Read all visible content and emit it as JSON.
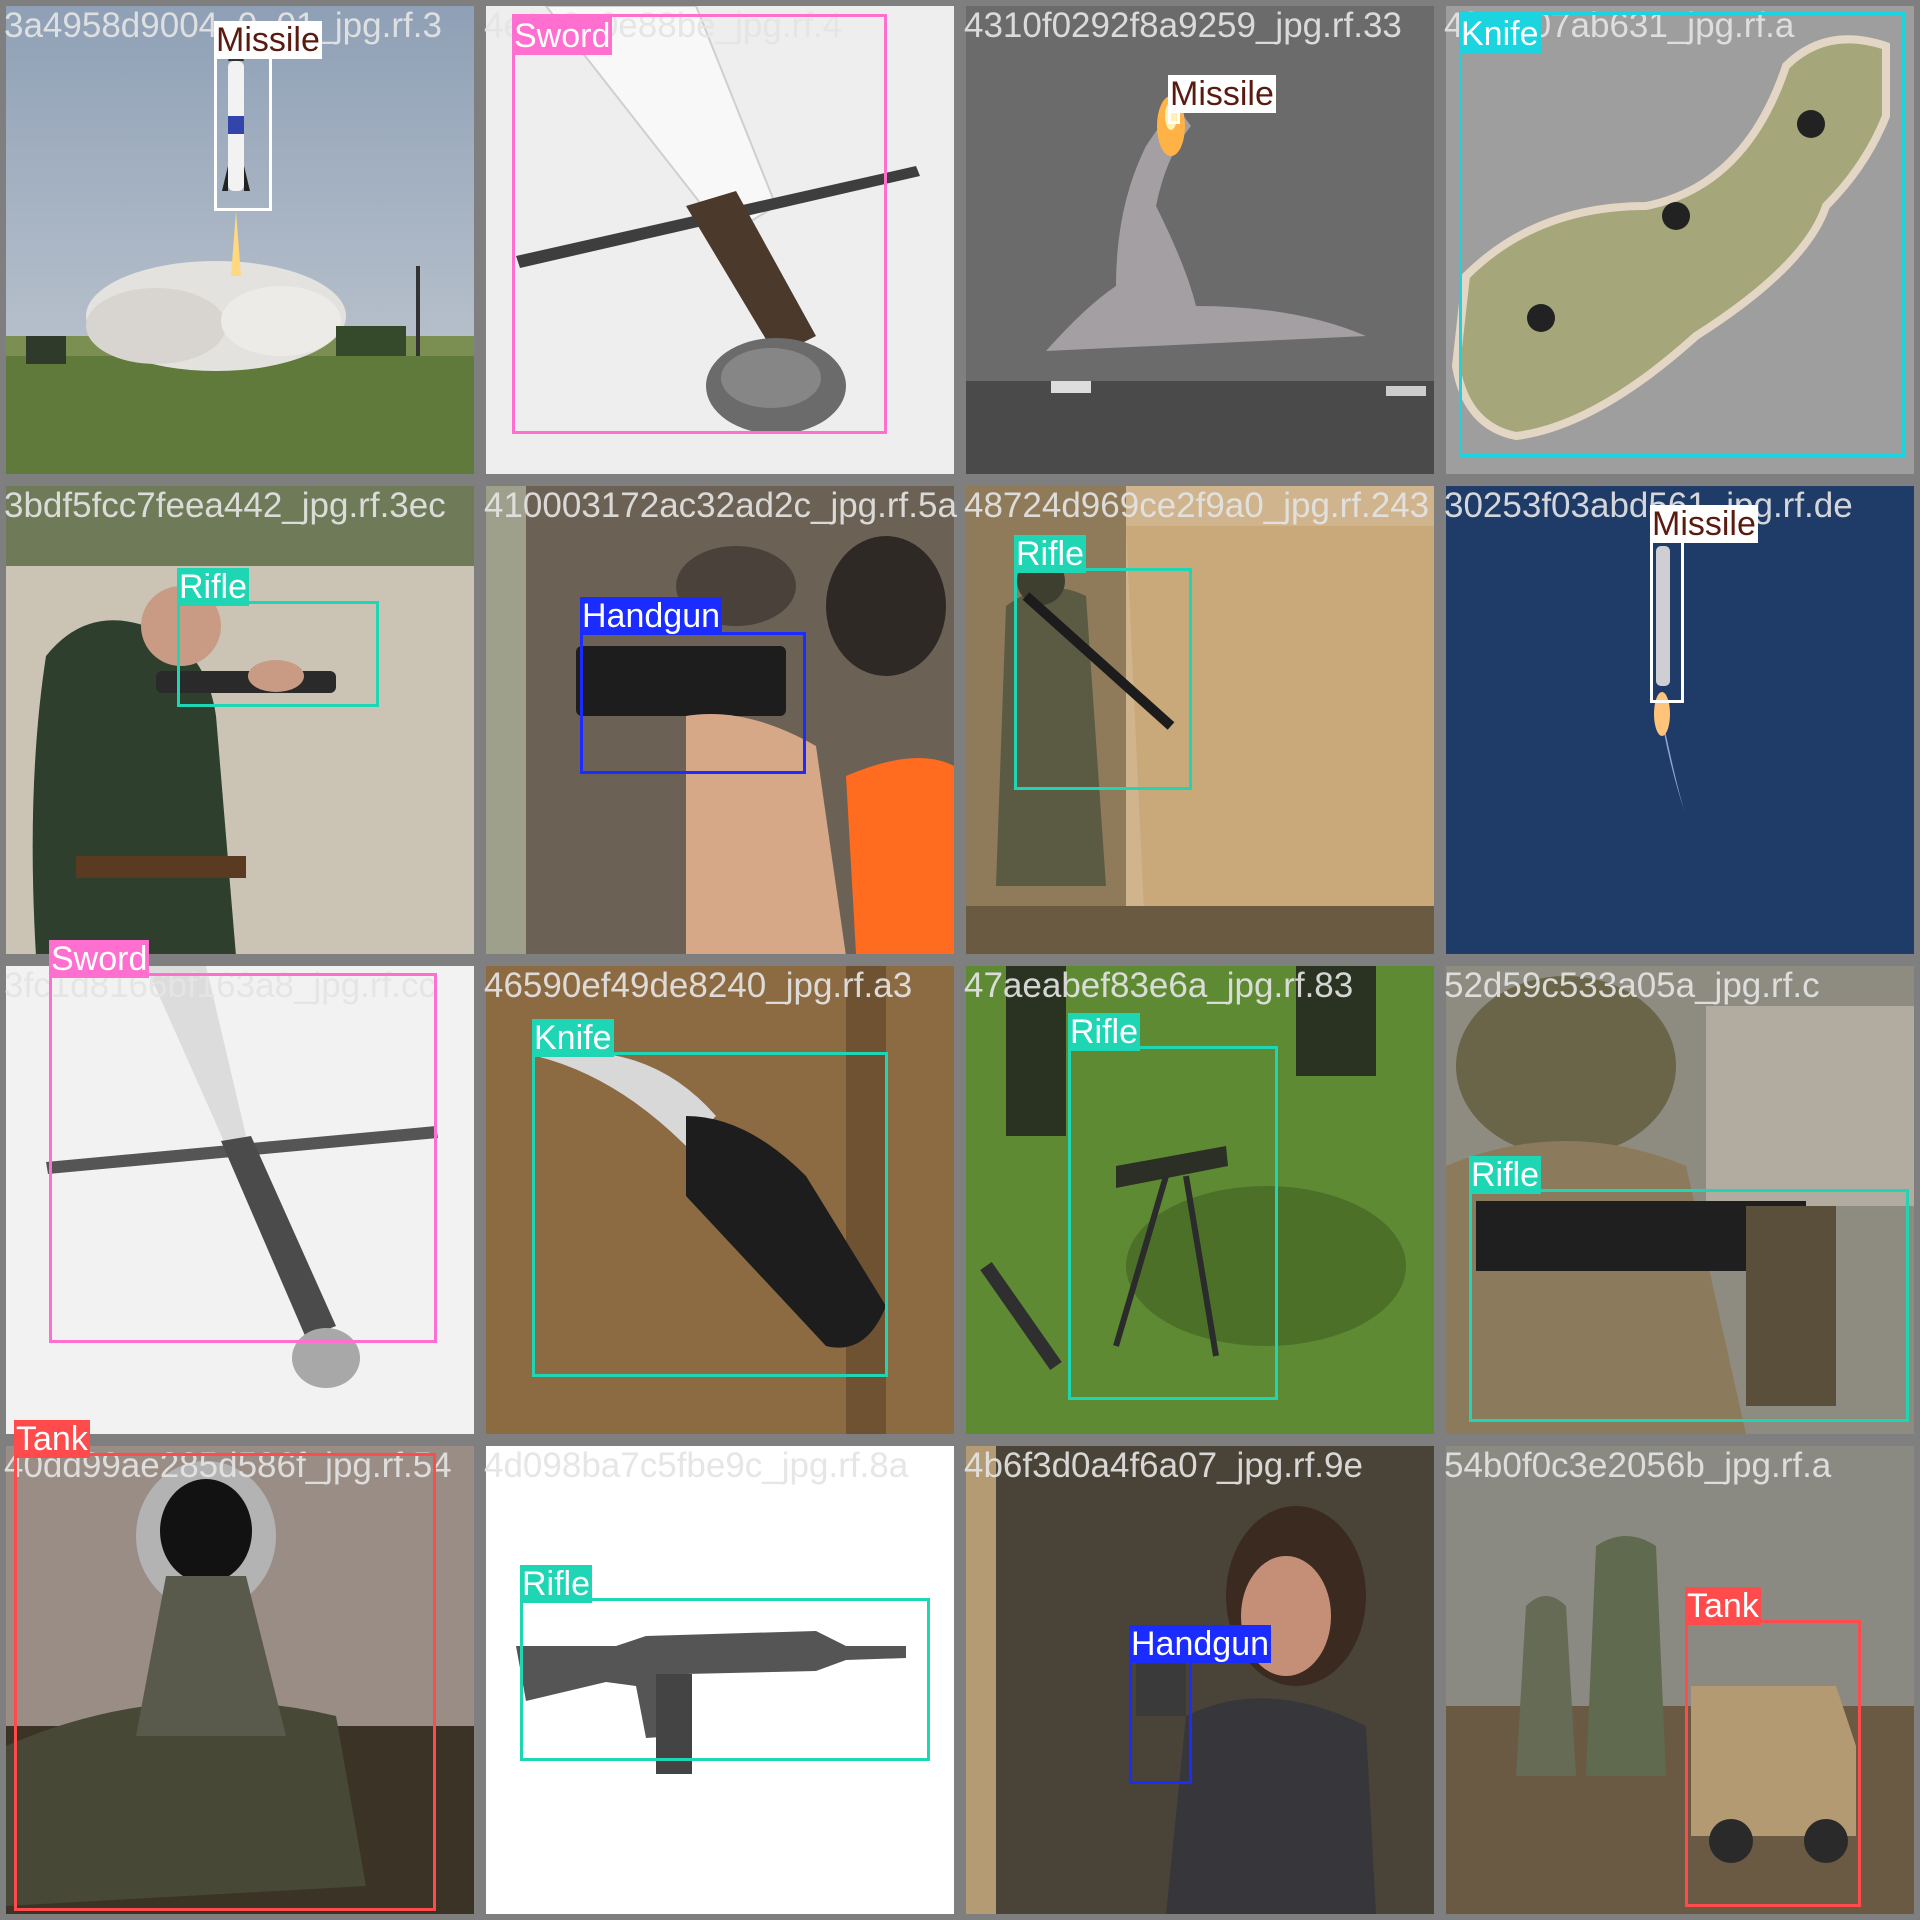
{
  "palette": {
    "Missile": {
      "box": "#ffffff",
      "label_bg": "#ffffff",
      "label_fg": "#5a1a10"
    },
    "Sword": {
      "box": "#ff6fd0",
      "label_bg": "#ff6fd0",
      "label_fg": "#ffffff"
    },
    "Knife": {
      "box": "#1ad4e0",
      "label_bg": "#1ad4e0",
      "label_fg": "#ffffff"
    },
    "Rifle": {
      "box": "#1fd6b4",
      "label_bg": "#1fd6b4",
      "label_fg": "#ffffff"
    },
    "Handgun": {
      "box": "#1a2cff",
      "label_bg": "#1a2cff",
      "label_fg": "#ffffff"
    },
    "Tank": {
      "box": "#ff4b4b",
      "label_bg": "#ff4b4b",
      "label_fg": "#ffffff"
    }
  },
  "tiles": [
    {
      "filename": "3a4958d9004_0_01_jpg.rf.3",
      "labels": [
        "Missile"
      ],
      "scene": "missile-launch-field"
    },
    {
      "filename": "4e1e9c0e88be_jpg.rf.4",
      "labels": [
        "Sword"
      ],
      "scene": "sword-hilt-closeup"
    },
    {
      "filename": "4310f0292f8a9259_jpg.rf.33",
      "labels": [
        "Missile"
      ],
      "scene": "rocket-launch-sea"
    },
    {
      "filename": "4fa2a07ab631_jpg.rf.a",
      "labels": [
        "Knife"
      ],
      "scene": "knife-handle-scale"
    },
    {
      "filename": "3bdf5fcc7feea442_jpg.rf.3ec",
      "labels": [
        "Rifle"
      ],
      "scene": "man-firing-rifle"
    },
    {
      "filename": "410003172ac32ad2c_jpg.rf.5a",
      "labels": [
        "Handgun"
      ],
      "scene": "shooting-range-handgun"
    },
    {
      "filename": "48724d969ce2f9a0_jpg.rf.243",
      "labels": [
        "Rifle"
      ],
      "scene": "soldier-by-tent"
    },
    {
      "filename": "30253f03abd561_jpg.rf.de",
      "labels": [
        "Missile"
      ],
      "scene": "rocket-blue-sky"
    },
    {
      "filename": "3fc1d8166bf163a8_jpg.rf.cc",
      "labels": [
        "Sword"
      ],
      "scene": "longsword-white"
    },
    {
      "filename": "46590ef49de8240_jpg.rf.a3",
      "labels": [
        "Knife"
      ],
      "scene": "folding-knife-wood"
    },
    {
      "filename": "47aeabef83e6a_jpg.rf.83",
      "labels": [
        "Rifle"
      ],
      "scene": "machine-gun-grass"
    },
    {
      "filename": "52d59c533a05a_jpg.rf.c",
      "labels": [
        "Rifle"
      ],
      "scene": "soldier-aiming-rifle"
    },
    {
      "filename": "40dd99ae285d586f_jpg.rf.54",
      "labels": [
        "Tank"
      ],
      "scene": "tank-barrel"
    },
    {
      "filename": "4d098ba7c5fbe9c_jpg.rf.8a",
      "labels": [
        "Rifle"
      ],
      "scene": "rifle-white-background"
    },
    {
      "filename": "4b6f3d0a4f6a07_jpg.rf.9e",
      "labels": [
        "Handgun"
      ],
      "scene": "woman-aiming-handgun"
    },
    {
      "filename": "54b0f0c3e2056b_jpg.rf.a",
      "labels": [
        "Tank"
      ],
      "scene": "soldiers-armored-vehicle"
    }
  ]
}
